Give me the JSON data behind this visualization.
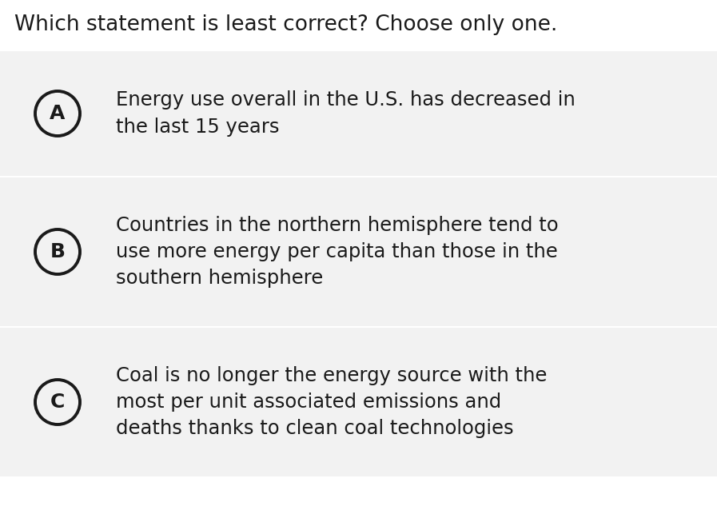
{
  "title": "Which statement is least correct? Choose only one.",
  "title_fontsize": 19,
  "title_color": "#1a1a1a",
  "background_color": "#ffffff",
  "option_bg_color": "#f2f2f2",
  "text_color": "#1a1a1a",
  "circle_color": "#1a1a1a",
  "options": [
    {
      "label": "A",
      "text": "Energy use overall in the U.S. has decreased in\nthe last 15 years",
      "lines": 2
    },
    {
      "label": "B",
      "text": "Countries in the northern hemisphere tend to\nuse more energy per capita than those in the\nsouthern hemisphere",
      "lines": 3
    },
    {
      "label": "C",
      "text": "Coal is no longer the energy source with the\nmost per unit associated emissions and\ndeaths thanks to clean coal technologies",
      "lines": 3
    }
  ],
  "text_fontsize": 17.5,
  "label_fontsize": 18,
  "fig_width": 8.97,
  "fig_height": 6.53,
  "dpi": 100
}
